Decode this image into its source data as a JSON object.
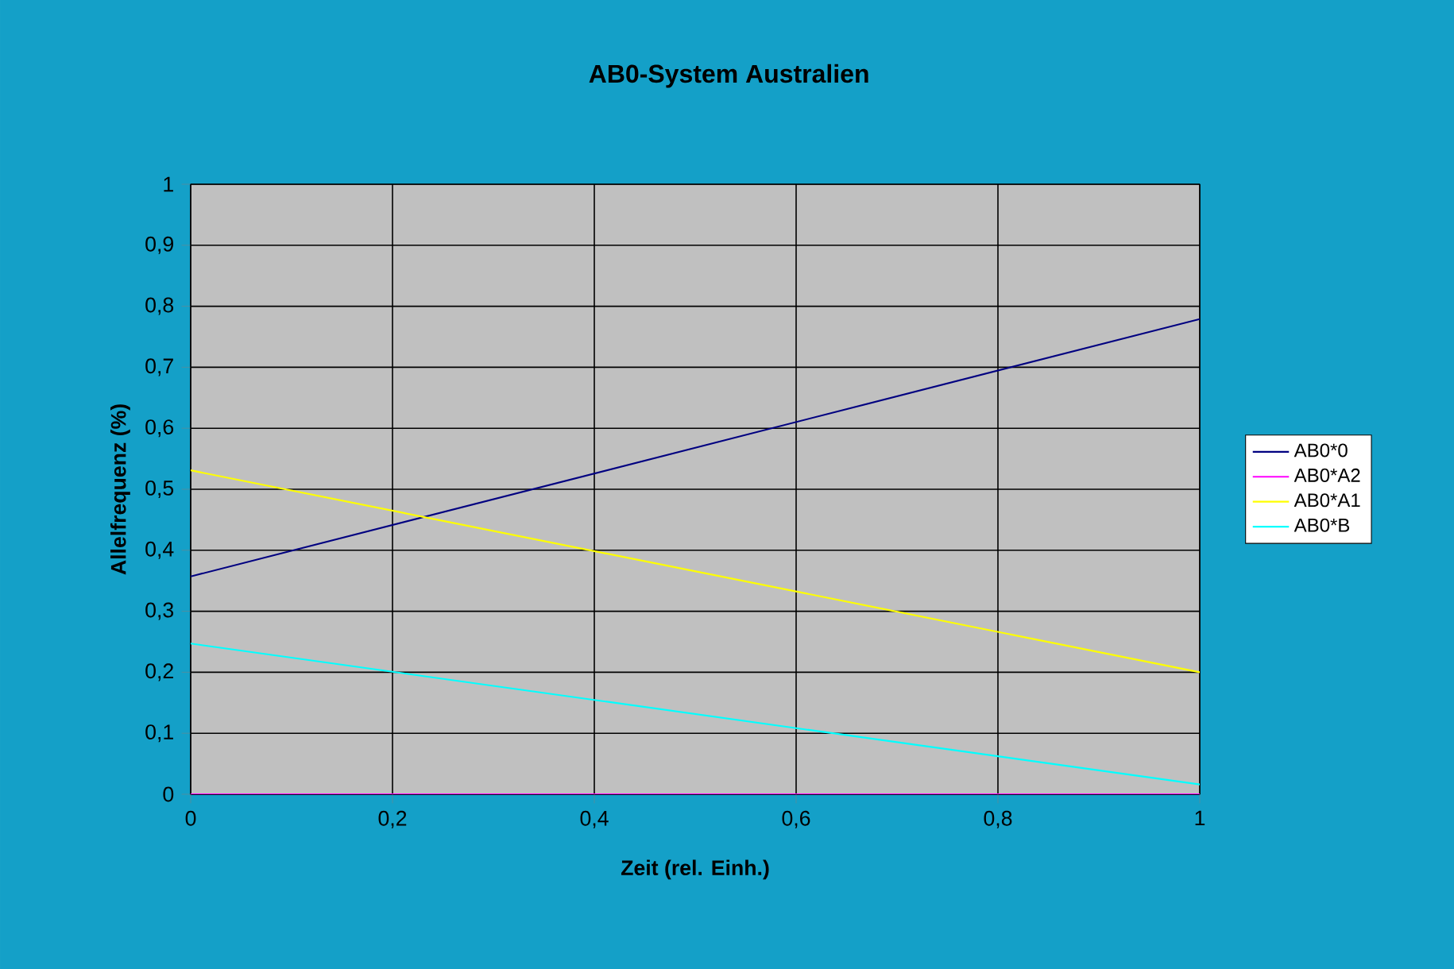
{
  "chart_data": {
    "type": "line",
    "title": "AB0-System Australien",
    "xlabel": "Zeit (rel. Einh.)",
    "ylabel": "Allelfrequenz (%)",
    "x": [
      0,
      1
    ],
    "series": [
      {
        "name": "AB0*0",
        "color": "#000080",
        "values": [
          0.357,
          0.779
        ]
      },
      {
        "name": "AB0*A2",
        "color": "#ff00ff",
        "values": [
          0,
          0
        ]
      },
      {
        "name": "AB0*A1",
        "color": "#ffff00",
        "values": [
          0.531,
          0.2
        ]
      },
      {
        "name": "AB0*B",
        "color": "#00ffff",
        "values": [
          0.247,
          0.016
        ]
      }
    ],
    "xlim": [
      0,
      1
    ],
    "ylim": [
      0,
      1
    ],
    "xticks": [
      0,
      {
        "value": 0.2,
        "label": "0,2"
      },
      {
        "value": 0.4,
        "label": "0,4"
      },
      {
        "value": 0.6,
        "label": "0,6"
      },
      {
        "value": 0.8,
        "label": "0,8"
      },
      1
    ],
    "yticks": [
      0,
      {
        "value": 0.1,
        "label": "0,1"
      },
      {
        "value": 0.2,
        "label": "0,2"
      },
      {
        "value": 0.3,
        "label": "0,3"
      },
      {
        "value": 0.4,
        "label": "0,4"
      },
      {
        "value": 0.5,
        "label": "0,5"
      },
      {
        "value": 0.6,
        "label": "0,6"
      },
      {
        "value": 0.7,
        "label": "0,7"
      },
      {
        "value": 0.8,
        "label": "0,8"
      },
      {
        "value": 0.9,
        "label": "0,9"
      },
      1
    ],
    "grid": true,
    "legend": "right"
  }
}
